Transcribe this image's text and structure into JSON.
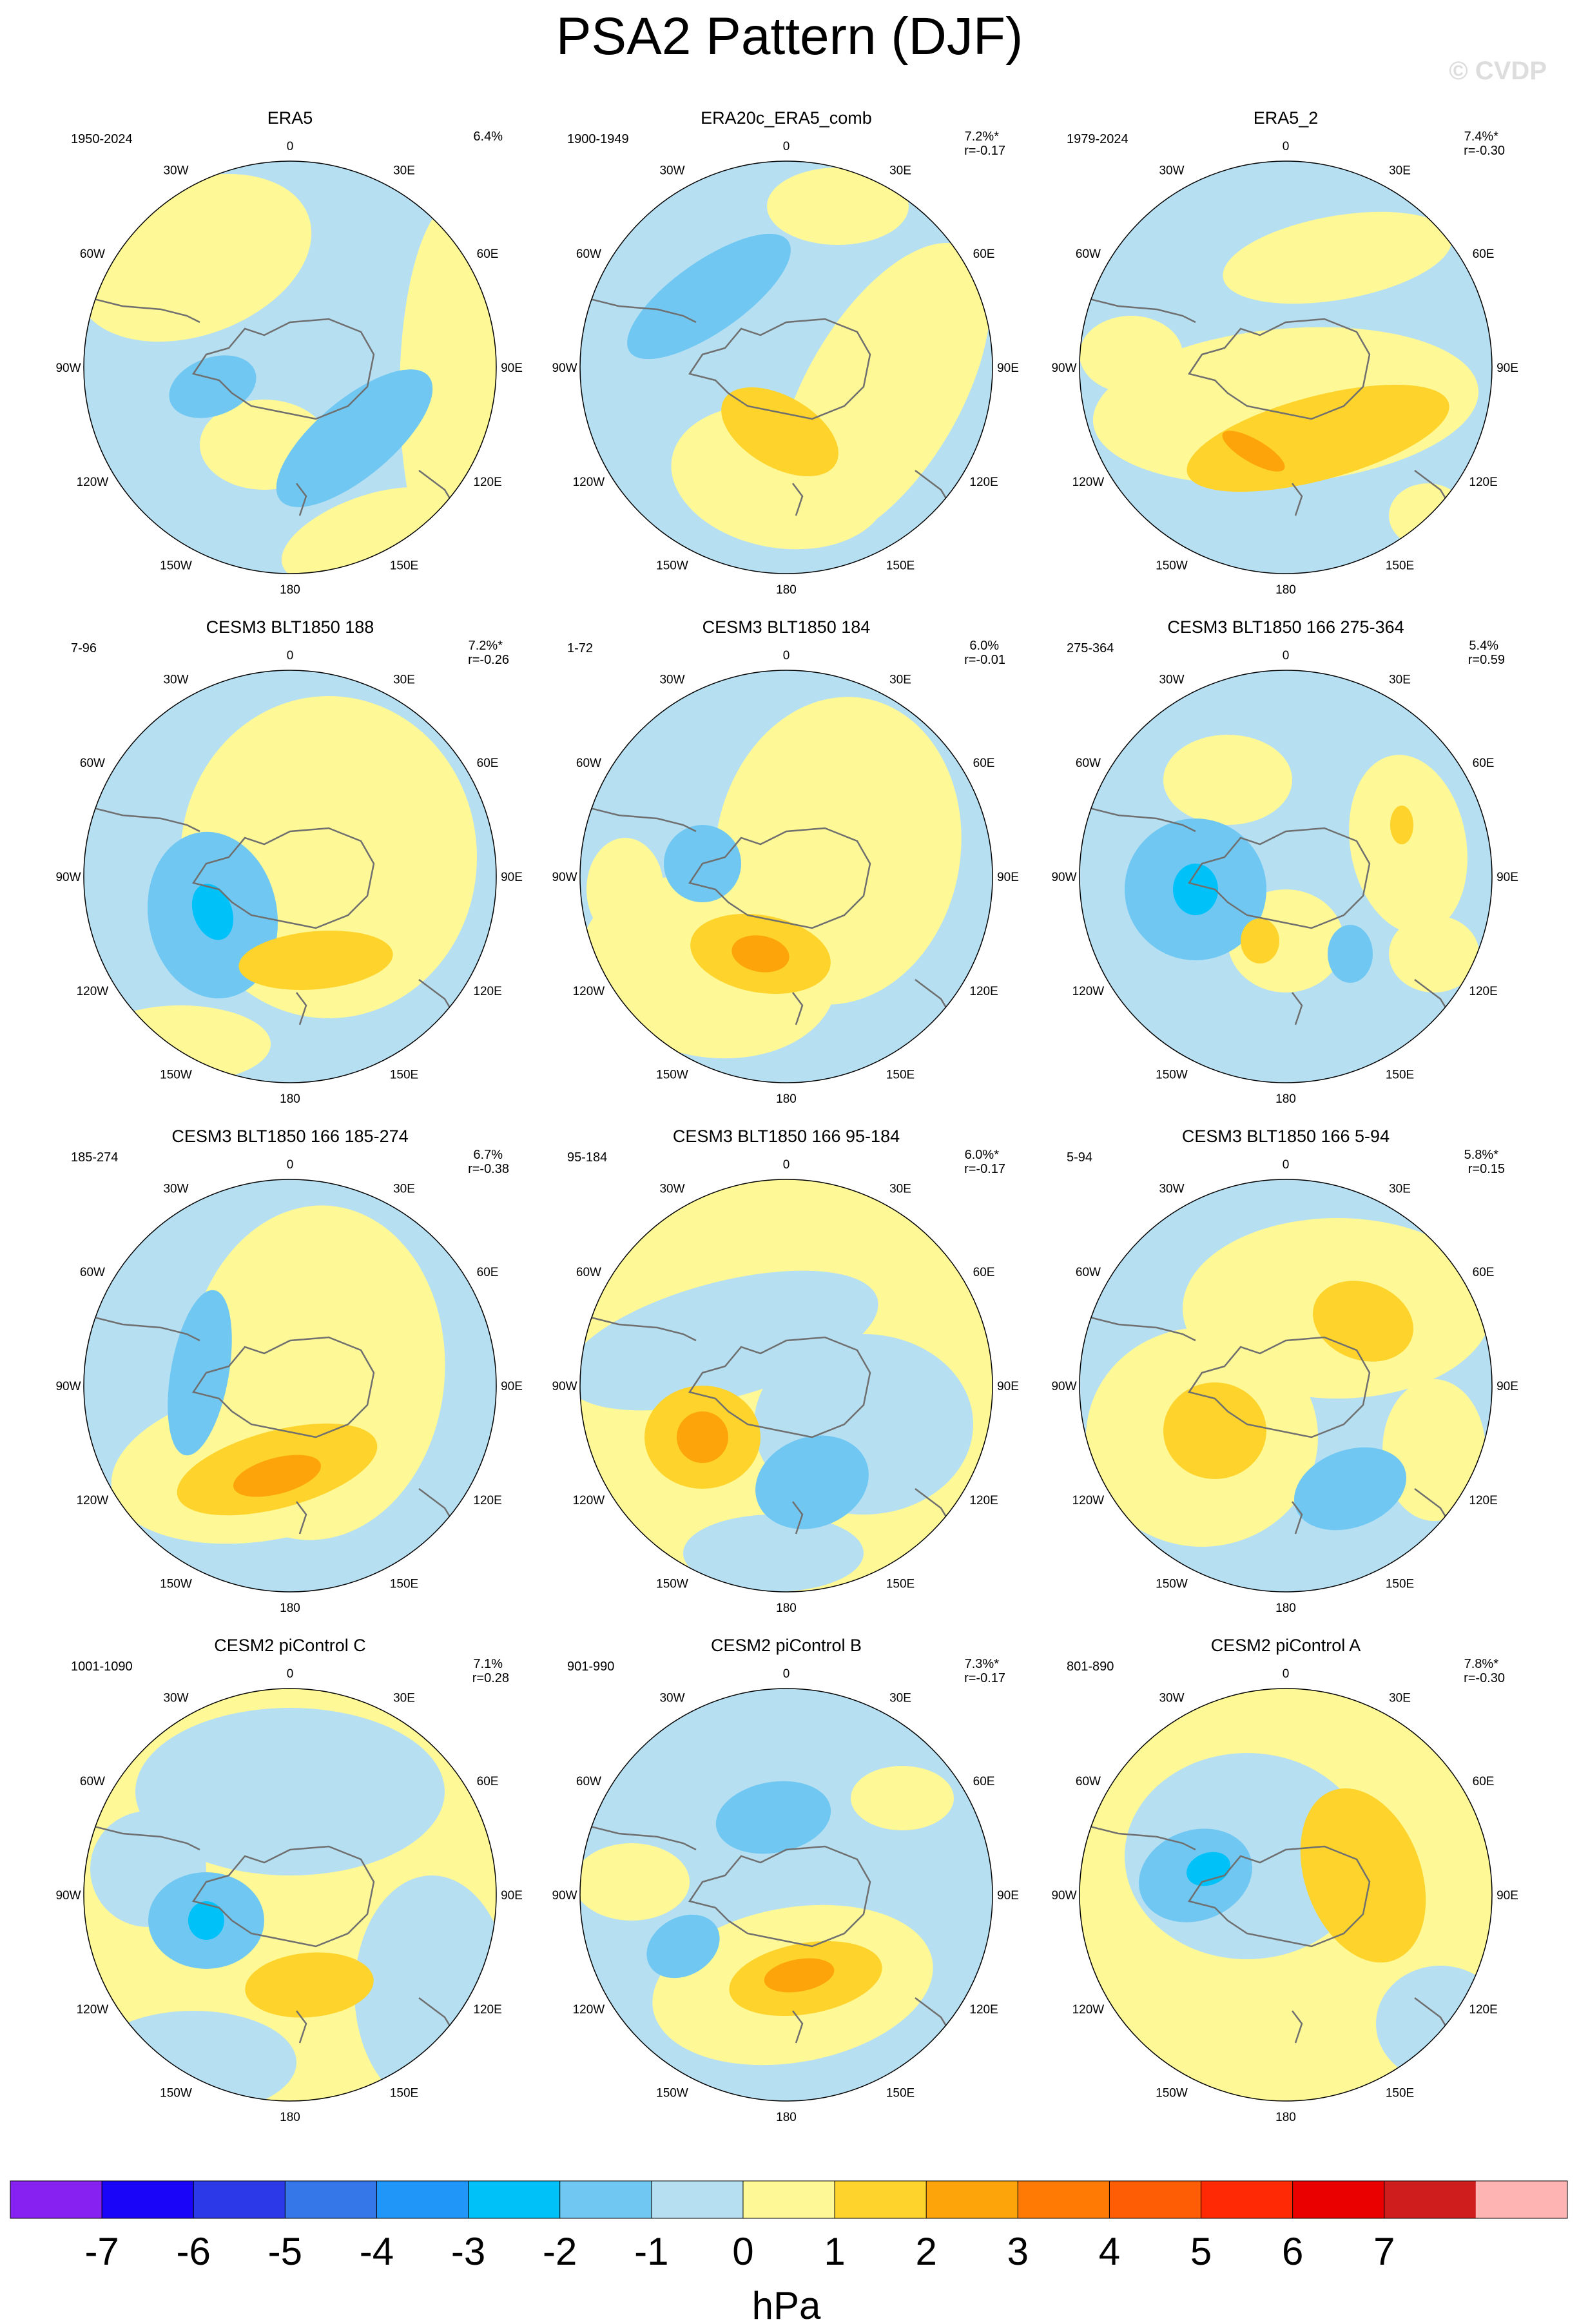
{
  "title": "PSA2 Pattern (DJF)",
  "watermark": "© CVDP",
  "colors": {
    "land_line": "#6f6f6f",
    "border": "#000000",
    "c_m7": "#8621f1",
    "c_m6": "#1a05f9",
    "c_m5": "#2c39e9",
    "c_m4": "#3577e8",
    "c_m3": "#2196f9",
    "c_m2": "#00c2f9",
    "c_m1": "#70c8f2",
    "c_m0": "#b6dff2",
    "c_p0": "#fff897",
    "c_p1": "#fed32b",
    "c_p2": "#fda40a",
    "c_p3": "#fe7a05",
    "c_p4": "#fe5c05",
    "c_p5": "#ff2a05",
    "c_p6": "#eb0000",
    "c_p7": "#cf1d1d",
    "c_p8": "#ffb4b4"
  },
  "lon_labels": [
    "0",
    "30E",
    "60E",
    "90E",
    "120E",
    "150E",
    "180",
    "150W",
    "120W",
    "90W",
    "60W",
    "30W"
  ],
  "colorbar": {
    "labels": [
      "-7",
      "-6",
      "-5",
      "-4",
      "-3",
      "-2",
      "-1",
      "0",
      "1",
      "2",
      "3",
      "4",
      "5",
      "6",
      "7"
    ],
    "unit": "hPa",
    "colors": [
      "#8621f1",
      "#1a05f9",
      "#2c39e9",
      "#3577e8",
      "#2196f9",
      "#00c2f9",
      "#70c8f2",
      "#b6dff2",
      "#fff897",
      "#fed32b",
      "#fda40a",
      "#fe7a05",
      "#fe5c05",
      "#ff2a05",
      "#eb0000",
      "#cf1d1d",
      "#ffb4b4"
    ]
  },
  "panels": [
    {
      "title": "ERA5",
      "years": "1950-2024",
      "pct": "6.4%",
      "r": ""
    },
    {
      "title": "ERA20c_ERA5_comb",
      "years": "1900-1949",
      "pct": "7.2%*",
      "r": "r=-0.17"
    },
    {
      "title": "ERA5_2",
      "years": "1979-2024",
      "pct": "7.4%*",
      "r": "r=-0.30"
    },
    {
      "title": "CESM3 BLT1850 188",
      "years": "7-96",
      "pct": "7.2%*",
      "r": "r=-0.26"
    },
    {
      "title": "CESM3 BLT1850 184",
      "years": "1-72",
      "pct": "6.0%",
      "r": "r=-0.01"
    },
    {
      "title": "CESM3 BLT1850 166 275-364",
      "years": "275-364",
      "pct": "5.4%",
      "r": "r=0.59"
    },
    {
      "title": "CESM3 BLT1850 166 185-274",
      "years": "185-274",
      "pct": "6.7%",
      "r": "r=-0.38"
    },
    {
      "title": "CESM3 BLT1850 166 95-184",
      "years": "95-184",
      "pct": "6.0%*",
      "r": "r=-0.17"
    },
    {
      "title": "CESM3 BLT1850 166 5-94",
      "years": "5-94",
      "pct": "5.8%*",
      "r": "r=0.15"
    },
    {
      "title": "CESM2 piControl C",
      "years": "1001-1090",
      "pct": "7.1%",
      "r": "r=0.28"
    },
    {
      "title": "CESM2 piControl B",
      "years": "901-990",
      "pct": "7.3%*",
      "r": "r=-0.17"
    },
    {
      "title": "CESM2 piControl A",
      "years": "801-890",
      "pct": "7.8%*",
      "r": "r=-0.30"
    }
  ]
}
